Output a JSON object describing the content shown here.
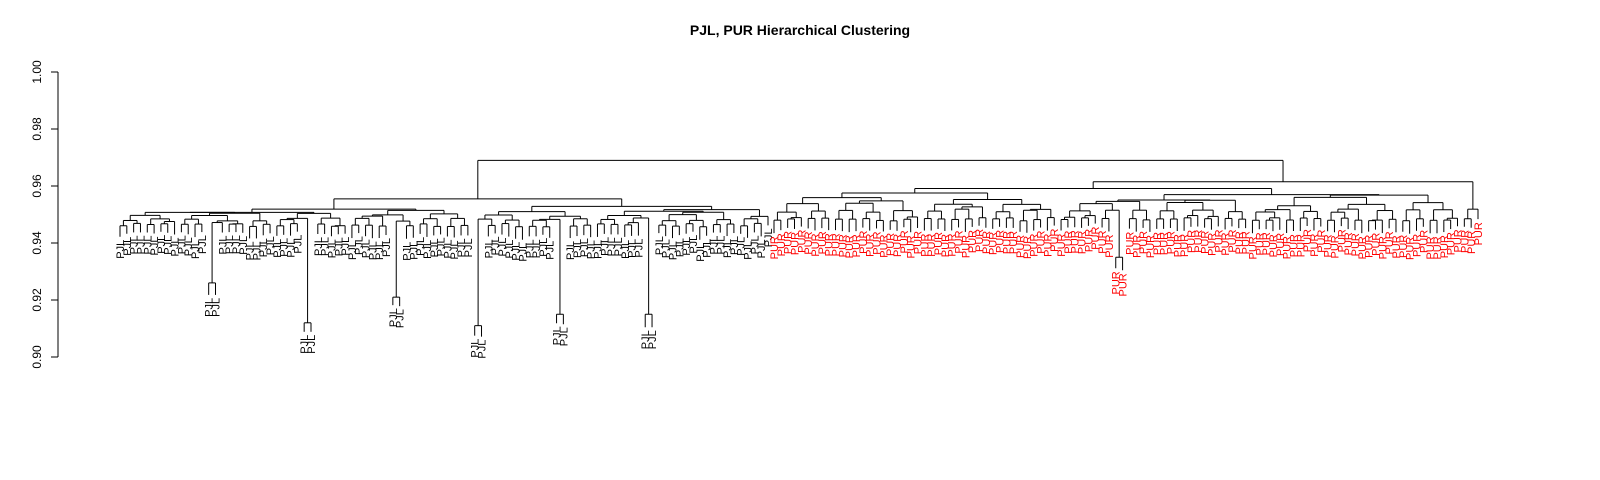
{
  "chart_data": {
    "type": "dendrogram",
    "title": "PJL, PUR Hierarchical Clustering",
    "ylim": [
      0.9,
      1.0
    ],
    "yticks": [
      "0.90",
      "0.92",
      "0.94",
      "0.96",
      "0.98",
      "1.00"
    ],
    "legend": "none",
    "grid": false,
    "colors": {
      "PJL": "#000000",
      "PUR": "#ff0000",
      "branches": "#000000"
    },
    "root_height": 0.969,
    "groups": [
      {
        "label": "PJL",
        "merge_height": 0.956,
        "leaf_count": 96,
        "low_leaf_heights": [
          0.926,
          0.926,
          0.912,
          0.912,
          0.921,
          0.921,
          0.911,
          0.911,
          0.915,
          0.915,
          0.915,
          0.915
        ],
        "typical_leaf_height_range": [
          0.93,
          0.953
        ]
      },
      {
        "label": "PUR",
        "merge_height": 0.962,
        "leaf_count": 104,
        "low_leaf_heights": [
          0.935,
          0.935
        ],
        "typical_leaf_height_range": [
          0.935,
          0.957
        ]
      }
    ]
  }
}
